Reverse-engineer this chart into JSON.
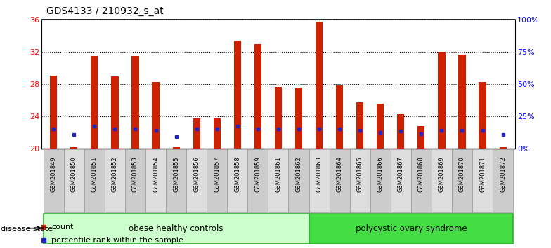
{
  "title": "GDS4133 / 210932_s_at",
  "samples": [
    "GSM201849",
    "GSM201850",
    "GSM201851",
    "GSM201852",
    "GSM201853",
    "GSM201854",
    "GSM201855",
    "GSM201856",
    "GSM201857",
    "GSM201858",
    "GSM201859",
    "GSM201861",
    "GSM201862",
    "GSM201863",
    "GSM201864",
    "GSM201865",
    "GSM201866",
    "GSM201867",
    "GSM201868",
    "GSM201869",
    "GSM201870",
    "GSM201871",
    "GSM201872"
  ],
  "counts": [
    29.1,
    20.2,
    31.5,
    29.0,
    31.5,
    28.3,
    20.2,
    23.8,
    23.8,
    33.4,
    33.0,
    27.7,
    27.6,
    35.8,
    27.9,
    25.8,
    25.6,
    24.3,
    22.8,
    32.0,
    31.7,
    28.3,
    20.2
  ],
  "pct_yvals": [
    22.5,
    21.8,
    22.8,
    22.5,
    22.5,
    22.3,
    21.5,
    22.5,
    22.5,
    22.8,
    22.5,
    22.5,
    22.5,
    22.5,
    22.5,
    22.3,
    22.0,
    22.2,
    21.9,
    22.3,
    22.3,
    22.3,
    21.8
  ],
  "ymin": 20,
  "ymax": 36,
  "bar_color": "#CC2200",
  "blue_color": "#2222CC",
  "group1_label": "obese healthy controls",
  "group1_n": 13,
  "group2_label": "polycystic ovary syndrome",
  "group2_n": 10,
  "group1_color": "#CCFFCC",
  "group2_color": "#44DD44",
  "bg_color": "#FFFFFF",
  "title_fontsize": 10,
  "right_ytick_labels": [
    "0%",
    "25%",
    "50%",
    "75%",
    "100%"
  ],
  "right_ytick_vals": [
    0,
    25,
    50,
    75,
    100
  ]
}
